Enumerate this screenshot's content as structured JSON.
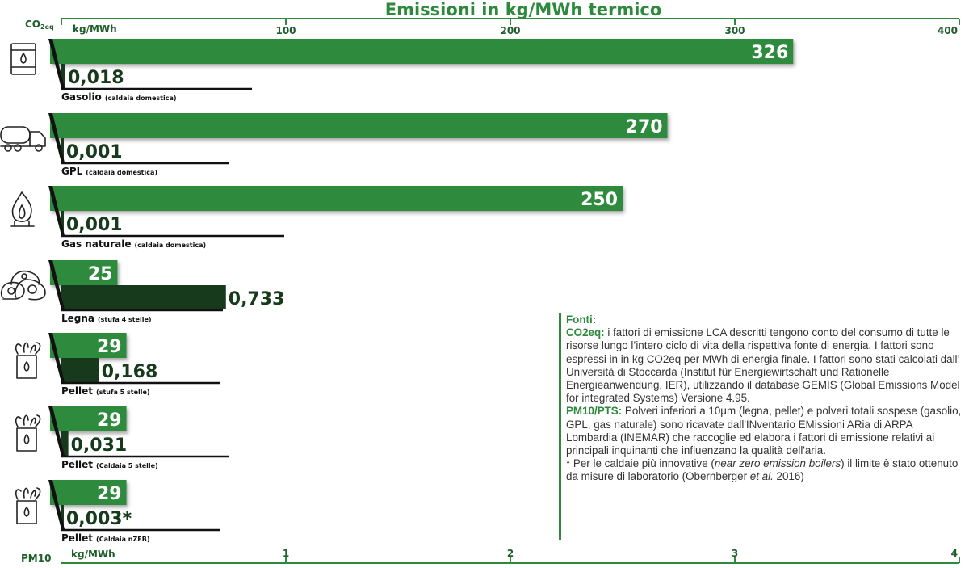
{
  "chart_data": {
    "type": "bar",
    "title": "Emissioni in kg/MWh termico",
    "co2_axis": {
      "label_main": "CO",
      "label_sub": "2eq",
      "unit": "kg/MWh",
      "range": [
        0,
        400
      ],
      "ticks": [
        "100",
        "200",
        "300",
        "400"
      ],
      "tick_values": [
        100,
        200,
        300,
        400
      ]
    },
    "pm_axis": {
      "label": "PM10",
      "unit": "kg/MWh",
      "range": [
        0,
        4
      ],
      "ticks": [
        "1",
        "2",
        "3",
        "4"
      ],
      "tick_values": [
        1,
        2,
        3,
        4
      ]
    },
    "categories": [
      {
        "name": "Gasolio",
        "note": "(caldaia domestica)",
        "icon": "oil-drum-icon"
      },
      {
        "name": "GPL",
        "note": "(caldaia domestica)",
        "icon": "tanker-truck-icon"
      },
      {
        "name": "Gas naturale",
        "note": "(caldaia domestica)",
        "icon": "gas-flame-icon"
      },
      {
        "name": "Legna",
        "note": "(stufa 4 stelle)",
        "icon": "wood-logs-icon"
      },
      {
        "name": "Pellet",
        "note": "(stufa 5 stelle)",
        "icon": "pellet-bag-icon"
      },
      {
        "name": "Pellet",
        "note": "(Caldaia 5 stelle)",
        "icon": "pellet-bag-icon"
      },
      {
        "name": "Pellet",
        "note": "(Caldaia nZEB)",
        "icon": "pellet-bag-icon"
      }
    ],
    "series": [
      {
        "name": "CO2eq",
        "values": [
          326,
          270,
          250,
          25,
          29,
          29,
          29
        ],
        "labels": [
          "326",
          "270",
          "250",
          "25",
          "29",
          "29",
          "29"
        ]
      },
      {
        "name": "PM10",
        "values": [
          0.018,
          0.001,
          0.001,
          0.733,
          0.168,
          0.031,
          0.003
        ],
        "labels": [
          "0,018",
          "0,001",
          "0,001",
          "0,733",
          "0,168",
          "0,031",
          "0,003*"
        ]
      }
    ]
  },
  "colors": {
    "co2_bar": "#2d8a3c",
    "pm_bar": "#173a1c",
    "axis": "#2d8a3c",
    "text_dark": "#173a1c"
  },
  "notes": {
    "heading": "Fonti:",
    "co2_label": "CO2eq:",
    "co2_text": "  i fattori di emissione LCA descritti tengono conto del consumo di tutte le risorse lungo l’intero ciclo di vita della rispettiva fonte di energia. I fattori sono espressi in in kg CO2eq per MWh di energia finale. I fattori sono stati calcolati dall’ Università di Stoccarda (Institut für Energiewirtschaft und Rationelle Energieanwendung, IER), utilizzando il database GEMIS (Global Emissions Model for integrated Systems) Versione 4.95.",
    "pm_label": "PM10/PTS:",
    "pm_text": " Polveri inferiori a 10μm (legna, pellet) e polveri totali sospese (gasolio, GPL, gas naturale) sono ricavate dall'INventario EMissioni ARia di ARPA Lombardia (INEMAR) che raccoglie ed elabora i fattori di emissione relativi ai principali inquinanti che influenzano la qualità dell'aria.",
    "star_pre": "* Per le caldaie più innovative (",
    "star_em": "near zero emission boilers",
    "star_mid": ") il limite è stato ottenuto da misure di laboratorio (Obernberger ",
    "star_em2": "et al.",
    "star_post": " 2016)"
  }
}
